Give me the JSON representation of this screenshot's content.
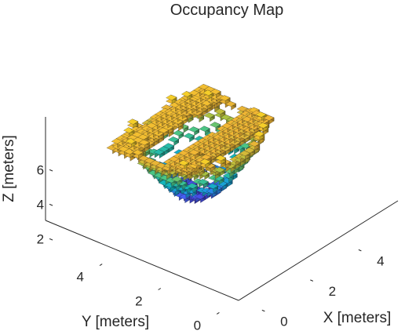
{
  "chart_data": {
    "type": "scatter",
    "subtype": "3d-voxel",
    "title": "Occupancy Map",
    "xlabel": "X [meters]",
    "ylabel": "Y [meters]",
    "zlabel": "Z [meters]",
    "xlim": [
      -0.8,
      5.8
    ],
    "ylim": [
      -0.8,
      5.8
    ],
    "zlim": [
      1.8,
      7.8
    ],
    "xticks": [
      0,
      2,
      4
    ],
    "yticks": [
      0,
      2,
      4
    ],
    "zticks": [
      2,
      4,
      6
    ],
    "xtick_labels": [
      "0",
      "2",
      "4"
    ],
    "ytick_labels": [
      "0",
      "2",
      "4"
    ],
    "ztick_labels": [
      "2",
      "4",
      "6"
    ],
    "grid": false,
    "legend": "none",
    "colormap": "parula",
    "voxel_color_encodes": "Z [meters]",
    "colormap_stops": [
      "#3e26a8",
      "#4a58f5",
      "#1e96e4",
      "#12b5bb",
      "#4cc583",
      "#b0c03c",
      "#f0b435",
      "#f9e51f"
    ],
    "voxel_size": 0.2,
    "shape": {
      "form": "bowl-shaped curved surface of occupied voxels",
      "center": [
        2.5,
        3.5
      ],
      "z_bottom": 2.9,
      "z_rim": 6.9,
      "x_range": [
        0.7,
        4.6
      ],
      "y_range": [
        2.0,
        5.4
      ]
    },
    "ridges": [
      {
        "x_range": [
          0.6,
          4.4
        ],
        "y_range": [
          4.2,
          4.8
        ],
        "z": 6.6
      },
      {
        "x_range": [
          0.9,
          4.4
        ],
        "y_range": [
          2.5,
          3.1
        ],
        "z": 6.5
      }
    ]
  }
}
